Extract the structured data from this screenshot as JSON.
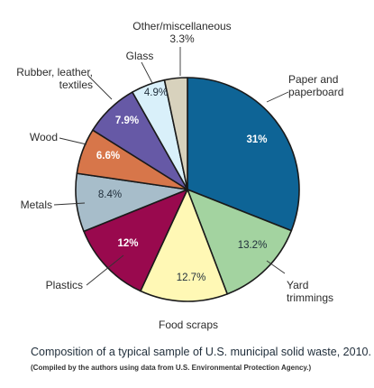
{
  "chart_data": {
    "type": "pie",
    "slices": [
      {
        "label": "Paper and paperboard",
        "lines": [
          "Paper and",
          "paperboard"
        ],
        "value": 31,
        "display": "31%",
        "color": "#0e6496",
        "text_color": "#ffffff",
        "bold": true
      },
      {
        "label": "Yard trimmings",
        "lines": [
          "Yard",
          "trimmings"
        ],
        "value": 13.2,
        "display": "13.2%",
        "color": "#a3d3a0",
        "text_color": "#1f2d3a",
        "bold": false
      },
      {
        "label": "Food scraps",
        "lines": [
          "Food scraps"
        ],
        "value": 12.7,
        "display": "12.7%",
        "color": "#fff8b5",
        "text_color": "#1f2d3a",
        "bold": false
      },
      {
        "label": "Plastics",
        "lines": [
          "Plastics"
        ],
        "value": 12,
        "display": "12%",
        "color": "#99094e",
        "text_color": "#ffffff",
        "bold": true
      },
      {
        "label": "Metals",
        "lines": [
          "Metals"
        ],
        "value": 8.4,
        "display": "8.4%",
        "color": "#a7bdca",
        "text_color": "#1f2d3a",
        "bold": false
      },
      {
        "label": "Wood",
        "lines": [
          "Wood"
        ],
        "value": 6.6,
        "display": "6.6%",
        "color": "#d7764a",
        "text_color": "#ffffff",
        "bold": true
      },
      {
        "label": "Rubber, leather, textiles",
        "lines": [
          "Rubber, leather,",
          "textiles"
        ],
        "value": 7.9,
        "display": "7.9%",
        "color": "#6659a6",
        "text_color": "#ffffff",
        "bold": true
      },
      {
        "label": "Glass",
        "lines": [
          "Glass"
        ],
        "value": 4.9,
        "display": "4.9%",
        "color": "#d9f0fa",
        "text_color": "#1f2d3a",
        "bold": false
      },
      {
        "label": "Other/miscellaneous",
        "lines": [
          "Other/miscellaneous",
          "3.3%"
        ],
        "value": 3.3,
        "display": "",
        "color": "#d8d2bd",
        "text_color": "#1f2d3a",
        "bold": false
      }
    ],
    "edge_color": "#1a1a1a"
  },
  "caption": "Composition of a typical sample of U.S. municipal solid waste, 2010.",
  "source": "(Compiled by the authors using data from U.S. Environmental Protection Agency.)"
}
